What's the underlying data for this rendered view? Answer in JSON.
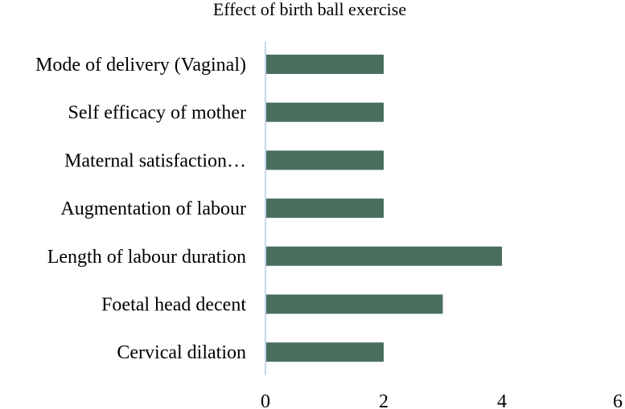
{
  "chart_data": {
    "type": "bar",
    "orientation": "horizontal",
    "title": "Effect of birth ball exercise",
    "categories": [
      "Mode of delivery (Vaginal)",
      "Self efficacy of mother",
      "Maternal satisfaction…",
      "Augmentation of labour",
      "Length of labour duration",
      "Foetal head decent",
      "Cervical dilation"
    ],
    "values": [
      2,
      2,
      2,
      2,
      4,
      3,
      2
    ],
    "xlabel": "",
    "ylabel": "",
    "xlim": [
      0,
      6
    ],
    "xticks": [
      "0",
      "2",
      "4",
      "6"
    ],
    "grid": false,
    "legend": "none",
    "bar_color": "#4a6f5e",
    "axis_color": "#b4c7e7"
  }
}
